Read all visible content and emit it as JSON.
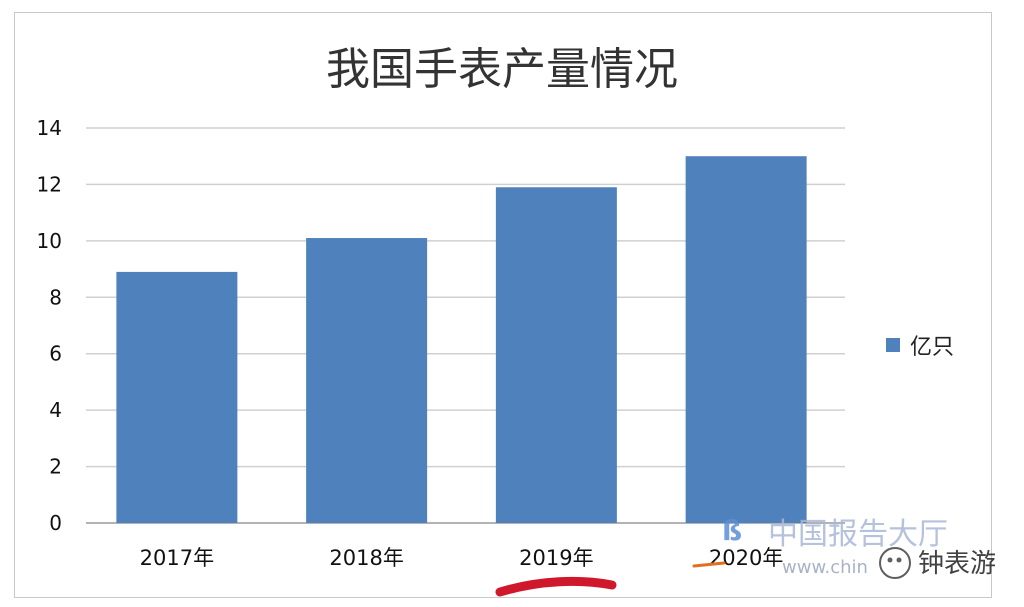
{
  "chart_data": {
    "type": "bar",
    "title": "我国手表产量情况",
    "categories": [
      "2017年",
      "2018年",
      "2019年",
      "2020年"
    ],
    "series": [
      {
        "name": "亿只",
        "values": [
          8.9,
          10.1,
          11.9,
          13.0
        ],
        "color": "#4f81bd"
      }
    ],
    "ylim": [
      0,
      14
    ],
    "yticks": [
      0,
      2,
      4,
      6,
      8,
      10,
      12,
      14
    ],
    "grid": true,
    "legend": "right"
  },
  "watermark": {
    "brand_text": "中国报告大厅",
    "url_fragment": "www.chin",
    "account_text": "钟表游"
  },
  "colors": {
    "bar": "#4f81bd",
    "grid": "#d0d0d0",
    "highlight_underline": "#d0182c",
    "orange_mark": "#e07020"
  }
}
